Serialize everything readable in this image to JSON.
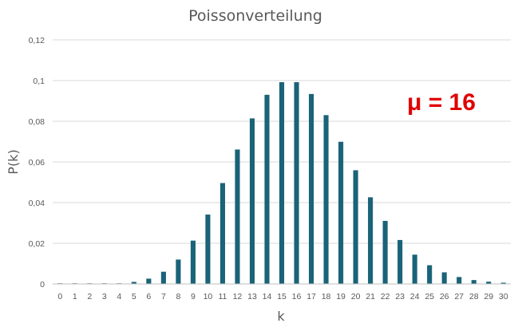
{
  "chart_data": {
    "type": "bar",
    "title": "Poissonverteilung",
    "xlabel": "k",
    "ylabel": "P(k)",
    "annotation": "μ = 16",
    "annotation_color": "#e00000",
    "bar_color": "#1a6378",
    "grid": true,
    "ylim": [
      0,
      0.12
    ],
    "yticks": [
      0,
      0.02,
      0.04,
      0.06,
      0.08,
      0.1,
      0.12
    ],
    "ytick_labels": [
      "0",
      "0,02",
      "0,04",
      "0,06",
      "0,08",
      "0,1",
      "0,12"
    ],
    "categories": [
      "0",
      "1",
      "2",
      "3",
      "4",
      "5",
      "6",
      "7",
      "8",
      "9",
      "10",
      "11",
      "12",
      "13",
      "14",
      "15",
      "16",
      "17",
      "18",
      "19",
      "20",
      "21",
      "22",
      "23",
      "24",
      "25",
      "26",
      "27",
      "28",
      "29",
      "30"
    ],
    "values": [
      1e-07,
      1.8e-06,
      1.44e-05,
      7.68e-05,
      0.0003,
      0.001,
      0.0026,
      0.006,
      0.012,
      0.0213,
      0.0341,
      0.0496,
      0.0661,
      0.0814,
      0.093,
      0.0992,
      0.0992,
      0.0934,
      0.083,
      0.0699,
      0.0559,
      0.0426,
      0.031,
      0.0216,
      0.0144,
      0.0092,
      0.0057,
      0.0034,
      0.0019,
      0.0011,
      0.0006
    ]
  }
}
